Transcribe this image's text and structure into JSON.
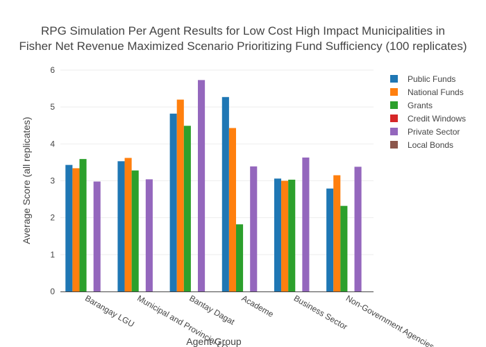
{
  "chart_data": {
    "type": "bar",
    "title_lines": [
      "RPG Simulation Per Agent Results for Low Cost High Impact Municipalities in",
      "Fisher Net Revenue Maximized Scenario Prioritizing Fund Sufficiency (100 replicates)"
    ],
    "xlabel": "Agent Group",
    "ylabel": "Average Score (all replicates)",
    "ylim": [
      0,
      6
    ],
    "yticks": [
      0,
      1,
      2,
      3,
      4,
      5,
      6
    ],
    "categories": [
      "Barangay LGU",
      "Municipal and Provincial LGU",
      "Bantay Dagat",
      "Academe",
      "Business Sector",
      "Non-Government Agencies"
    ],
    "series": [
      {
        "name": "Public Funds",
        "color": "#1f77b4",
        "values": [
          3.43,
          3.53,
          4.82,
          5.27,
          3.06,
          2.79
        ]
      },
      {
        "name": "National Funds",
        "color": "#ff7f0e",
        "values": [
          3.34,
          3.62,
          5.2,
          4.43,
          3.0,
          3.15
        ]
      },
      {
        "name": "Grants",
        "color": "#2ca02c",
        "values": [
          3.59,
          3.28,
          4.49,
          1.82,
          3.03,
          2.32
        ]
      },
      {
        "name": "Credit Windows",
        "color": "#d62728",
        "values": [
          0,
          0,
          0,
          0,
          0,
          0
        ]
      },
      {
        "name": "Private Sector",
        "color": "#9467bd",
        "values": [
          2.98,
          3.04,
          5.73,
          3.39,
          3.63,
          3.38
        ]
      },
      {
        "name": "Local Bonds",
        "color": "#8c564b",
        "values": [
          0,
          0,
          0,
          0,
          0,
          0
        ]
      }
    ],
    "grid": true,
    "legend_position": "top-right"
  }
}
